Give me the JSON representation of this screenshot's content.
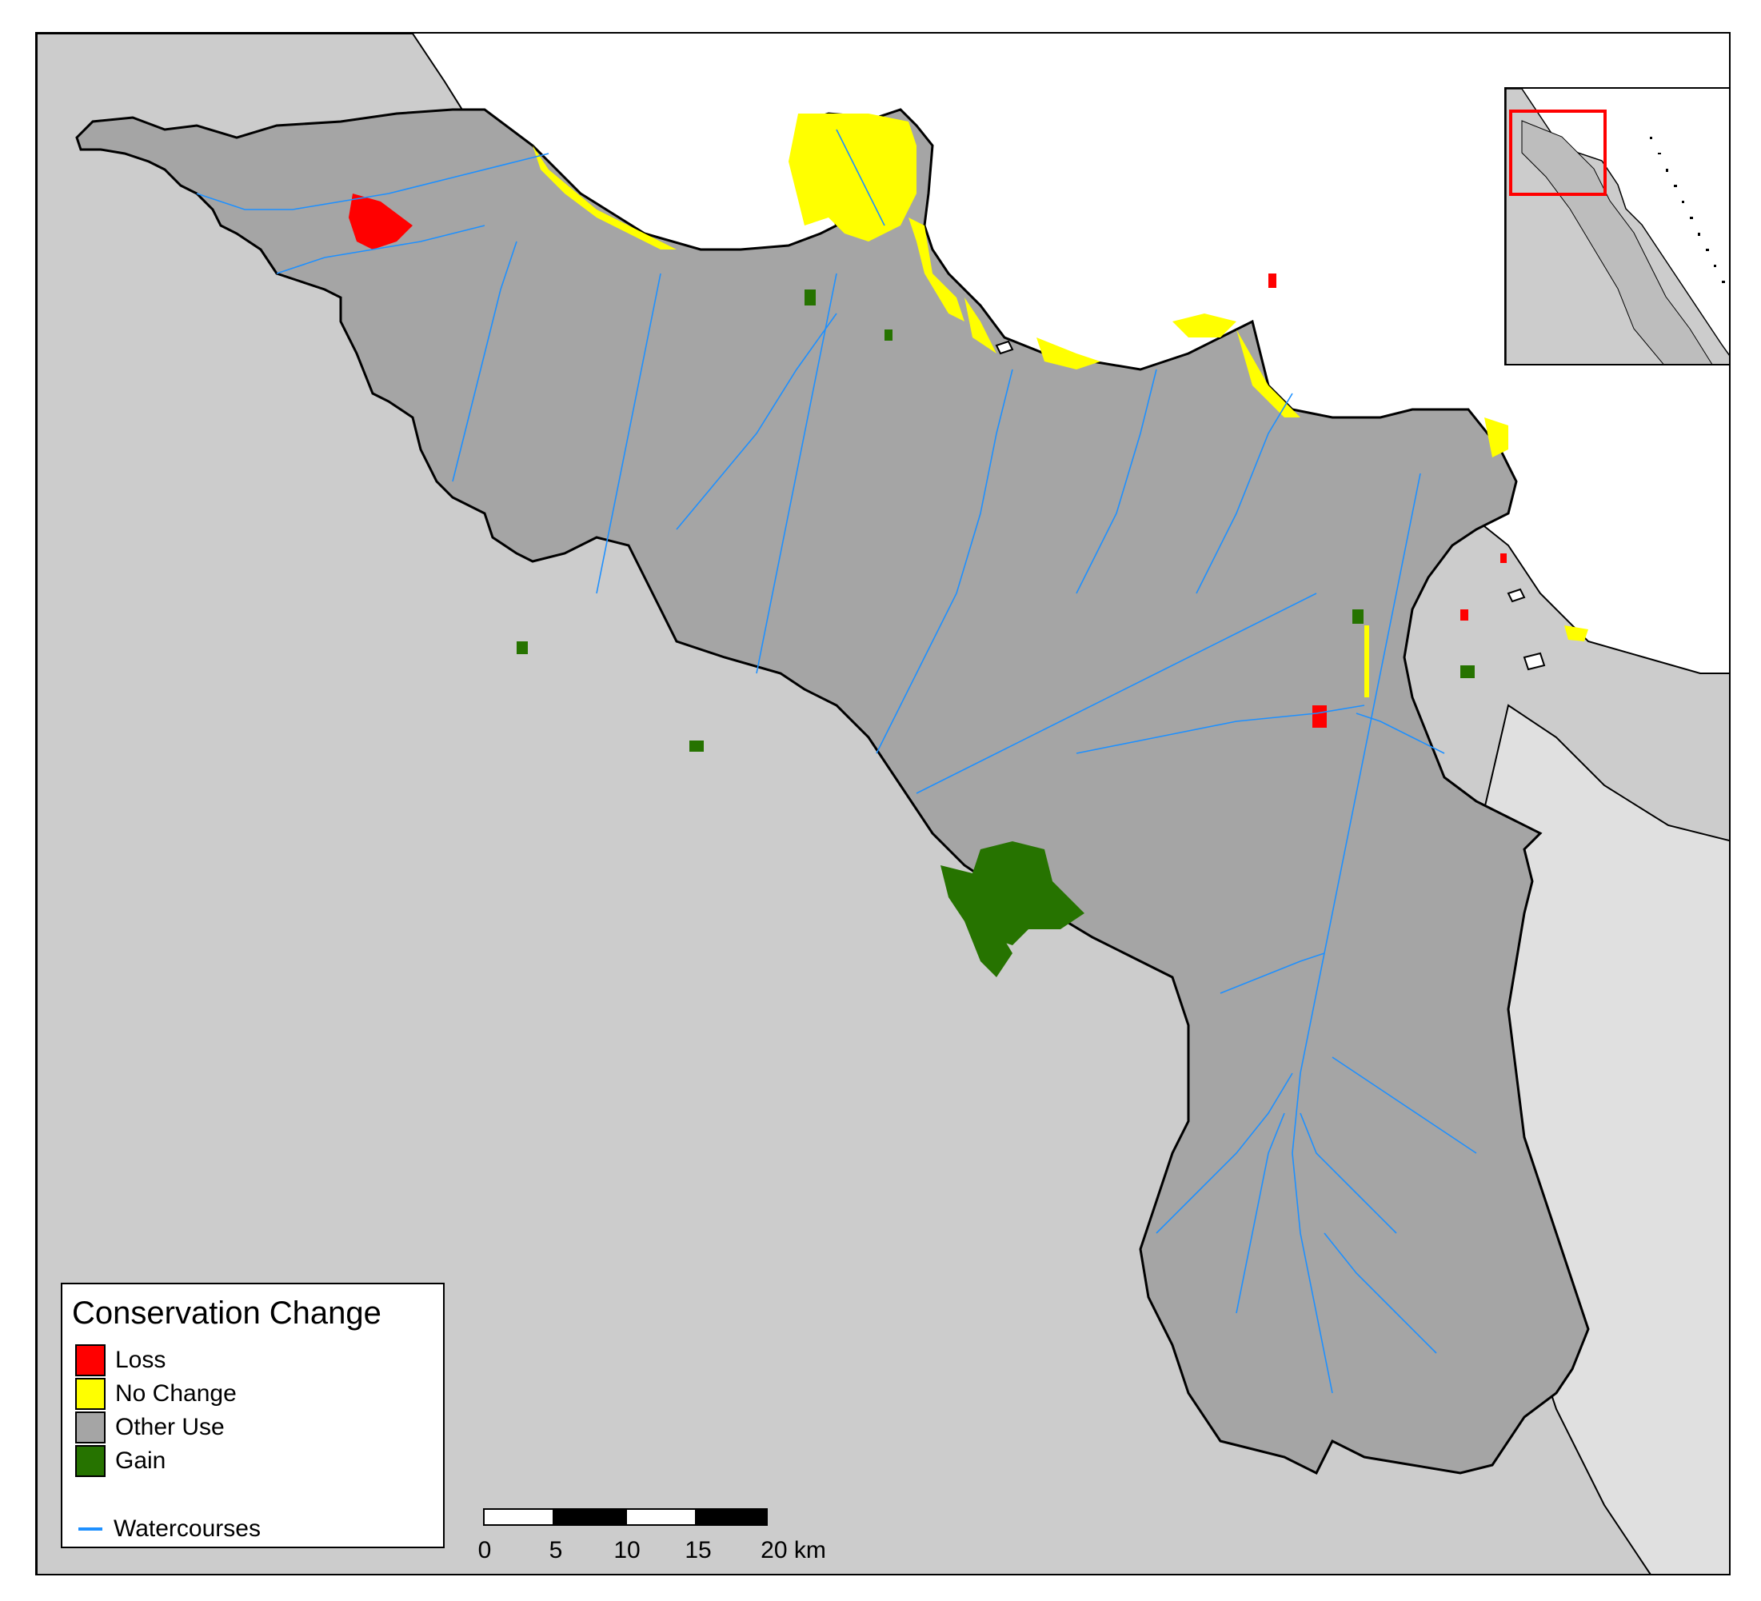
{
  "colors": {
    "loss": "#ff0000",
    "no_change": "#ffff00",
    "other_use": "#a5a5a5",
    "gain": "#267300",
    "watercourse": "#1e90ff",
    "surrounding_land": "#cccccc",
    "sea": "#ffffff",
    "inset_extent": "#ff0000"
  },
  "legend": {
    "title": "Conservation Change",
    "items": [
      {
        "key": "loss",
        "label": "Loss"
      },
      {
        "key": "no_change",
        "label": "No Change"
      },
      {
        "key": "other_use",
        "label": "Other Use"
      },
      {
        "key": "gain",
        "label": "Gain"
      }
    ],
    "watercourses_label": "Watercourses"
  },
  "scalebar": {
    "ticks": [
      "0",
      "5",
      "10",
      "15",
      "20 km"
    ]
  },
  "inset": {
    "has_extent_box": true
  }
}
